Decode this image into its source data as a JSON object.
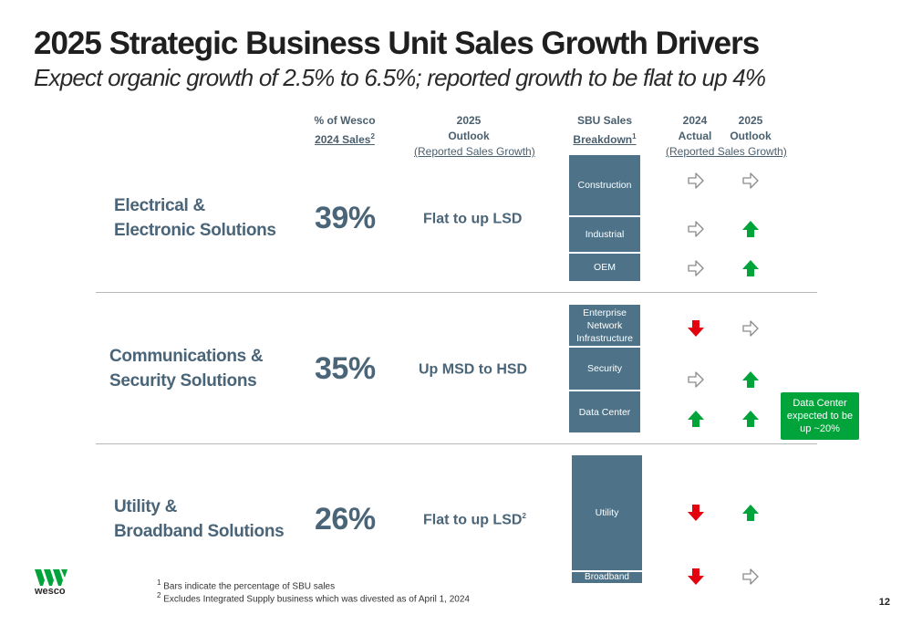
{
  "title": "2025 Strategic Business Unit Sales Growth Drivers",
  "subtitle": "Expect organic growth of 2.5% to 6.5%; reported growth to be flat to up 4%",
  "headers": {
    "pct_l1": "% of Wesco",
    "pct_l2": "2024 Sales",
    "pct_sup": "2",
    "outlook_l1": "2025",
    "outlook_l2": "Outlook",
    "outlook_sub": "(Reported Sales Growth)",
    "sbu_l1": "SBU Sales",
    "sbu_l2": "Breakdown",
    "sbu_sup": "1",
    "actual_l1": "2024",
    "actual_l2": "Actual",
    "outlook2_l1": "2025",
    "outlook2_l2": "Outlook",
    "growth_sub": "(Reported Sales Growth)"
  },
  "segments": [
    {
      "name_l1": "Electrical &",
      "name_l2": "Electronic Solutions",
      "pct": "39%",
      "outlook": "Flat to up LSD",
      "outlook_sup": "",
      "bars": [
        "Construction",
        "Industrial",
        "OEM"
      ],
      "arrows": [
        [
          "flat",
          "flat"
        ],
        [
          "flat",
          "up"
        ],
        [
          "flat",
          "up"
        ]
      ]
    },
    {
      "name_l1": "Communications &",
      "name_l2": "Security Solutions",
      "pct": "35%",
      "outlook": "Up MSD to HSD",
      "outlook_sup": "",
      "bars": [
        "Enterprise Network Infrastructure",
        "Security",
        "Data Center"
      ],
      "arrows": [
        [
          "down",
          "flat"
        ],
        [
          "flat",
          "up"
        ],
        [
          "up",
          "up"
        ]
      ]
    },
    {
      "name_l1": "Utility &",
      "name_l2": "Broadband Solutions",
      "pct": "26%",
      "outlook": "Flat to up LSD",
      "outlook_sup": "2",
      "bars": [
        "Utility",
        "Broadband"
      ],
      "arrows": [
        [
          "down",
          "up"
        ],
        [
          "down",
          "flat"
        ]
      ]
    }
  ],
  "callout": "Data Center expected to be up ~20%",
  "footnotes": {
    "fn1_sup": "1",
    "fn1": "Bars indicate the percentage of SBU sales",
    "fn2_sup": "2",
    "fn2": "Excludes Integrated Supply business which was divested as of April 1, 2024"
  },
  "logo_text": "wesco",
  "page_number": "12",
  "colors": {
    "arrow_up": "#00a43b",
    "arrow_down": "#e3000f",
    "arrow_flat_outline": "#8a8a8a",
    "bar_fill": "#4e7389",
    "callout_fill": "#00a43b",
    "logo_green": "#00a43b"
  },
  "icons": {
    "up": "green-up-arrow-icon",
    "down": "red-down-arrow-icon",
    "flat": "right-arrow-outline-icon"
  }
}
